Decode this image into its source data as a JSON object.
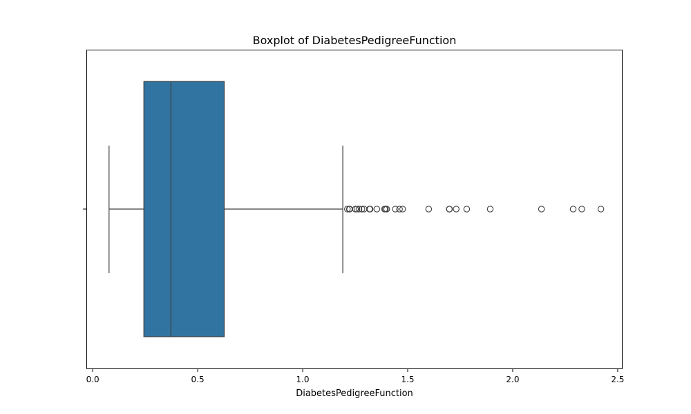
{
  "chart_data": {
    "type": "boxplot",
    "orientation": "horizontal",
    "title": "Boxplot of DiabetesPedigreeFunction",
    "xlabel": "DiabetesPedigreeFunction",
    "ylabel": "",
    "xlim": [
      -0.03,
      2.52
    ],
    "xticks": [
      0.0,
      0.5,
      1.0,
      1.5,
      2.0,
      2.5
    ],
    "xtick_labels": [
      "0.0",
      "0.5",
      "1.0",
      "1.5",
      "2.0",
      "2.5"
    ],
    "grid": false,
    "box_color": "#3274a1",
    "line_color": "#3f3f3f",
    "stats": {
      "whisker_low": 0.078,
      "q1": 0.24375,
      "median": 0.3725,
      "q3": 0.62625,
      "whisker_high": 1.191
    },
    "outliers": [
      1.213,
      1.222,
      1.224,
      1.251,
      1.258,
      1.268,
      1.282,
      1.292,
      1.318,
      1.321,
      1.353,
      1.39,
      1.394,
      1.4,
      1.441,
      1.461,
      1.476,
      1.6,
      1.698,
      1.699,
      1.731,
      1.781,
      1.893,
      2.137,
      2.288,
      2.329,
      2.42
    ]
  }
}
